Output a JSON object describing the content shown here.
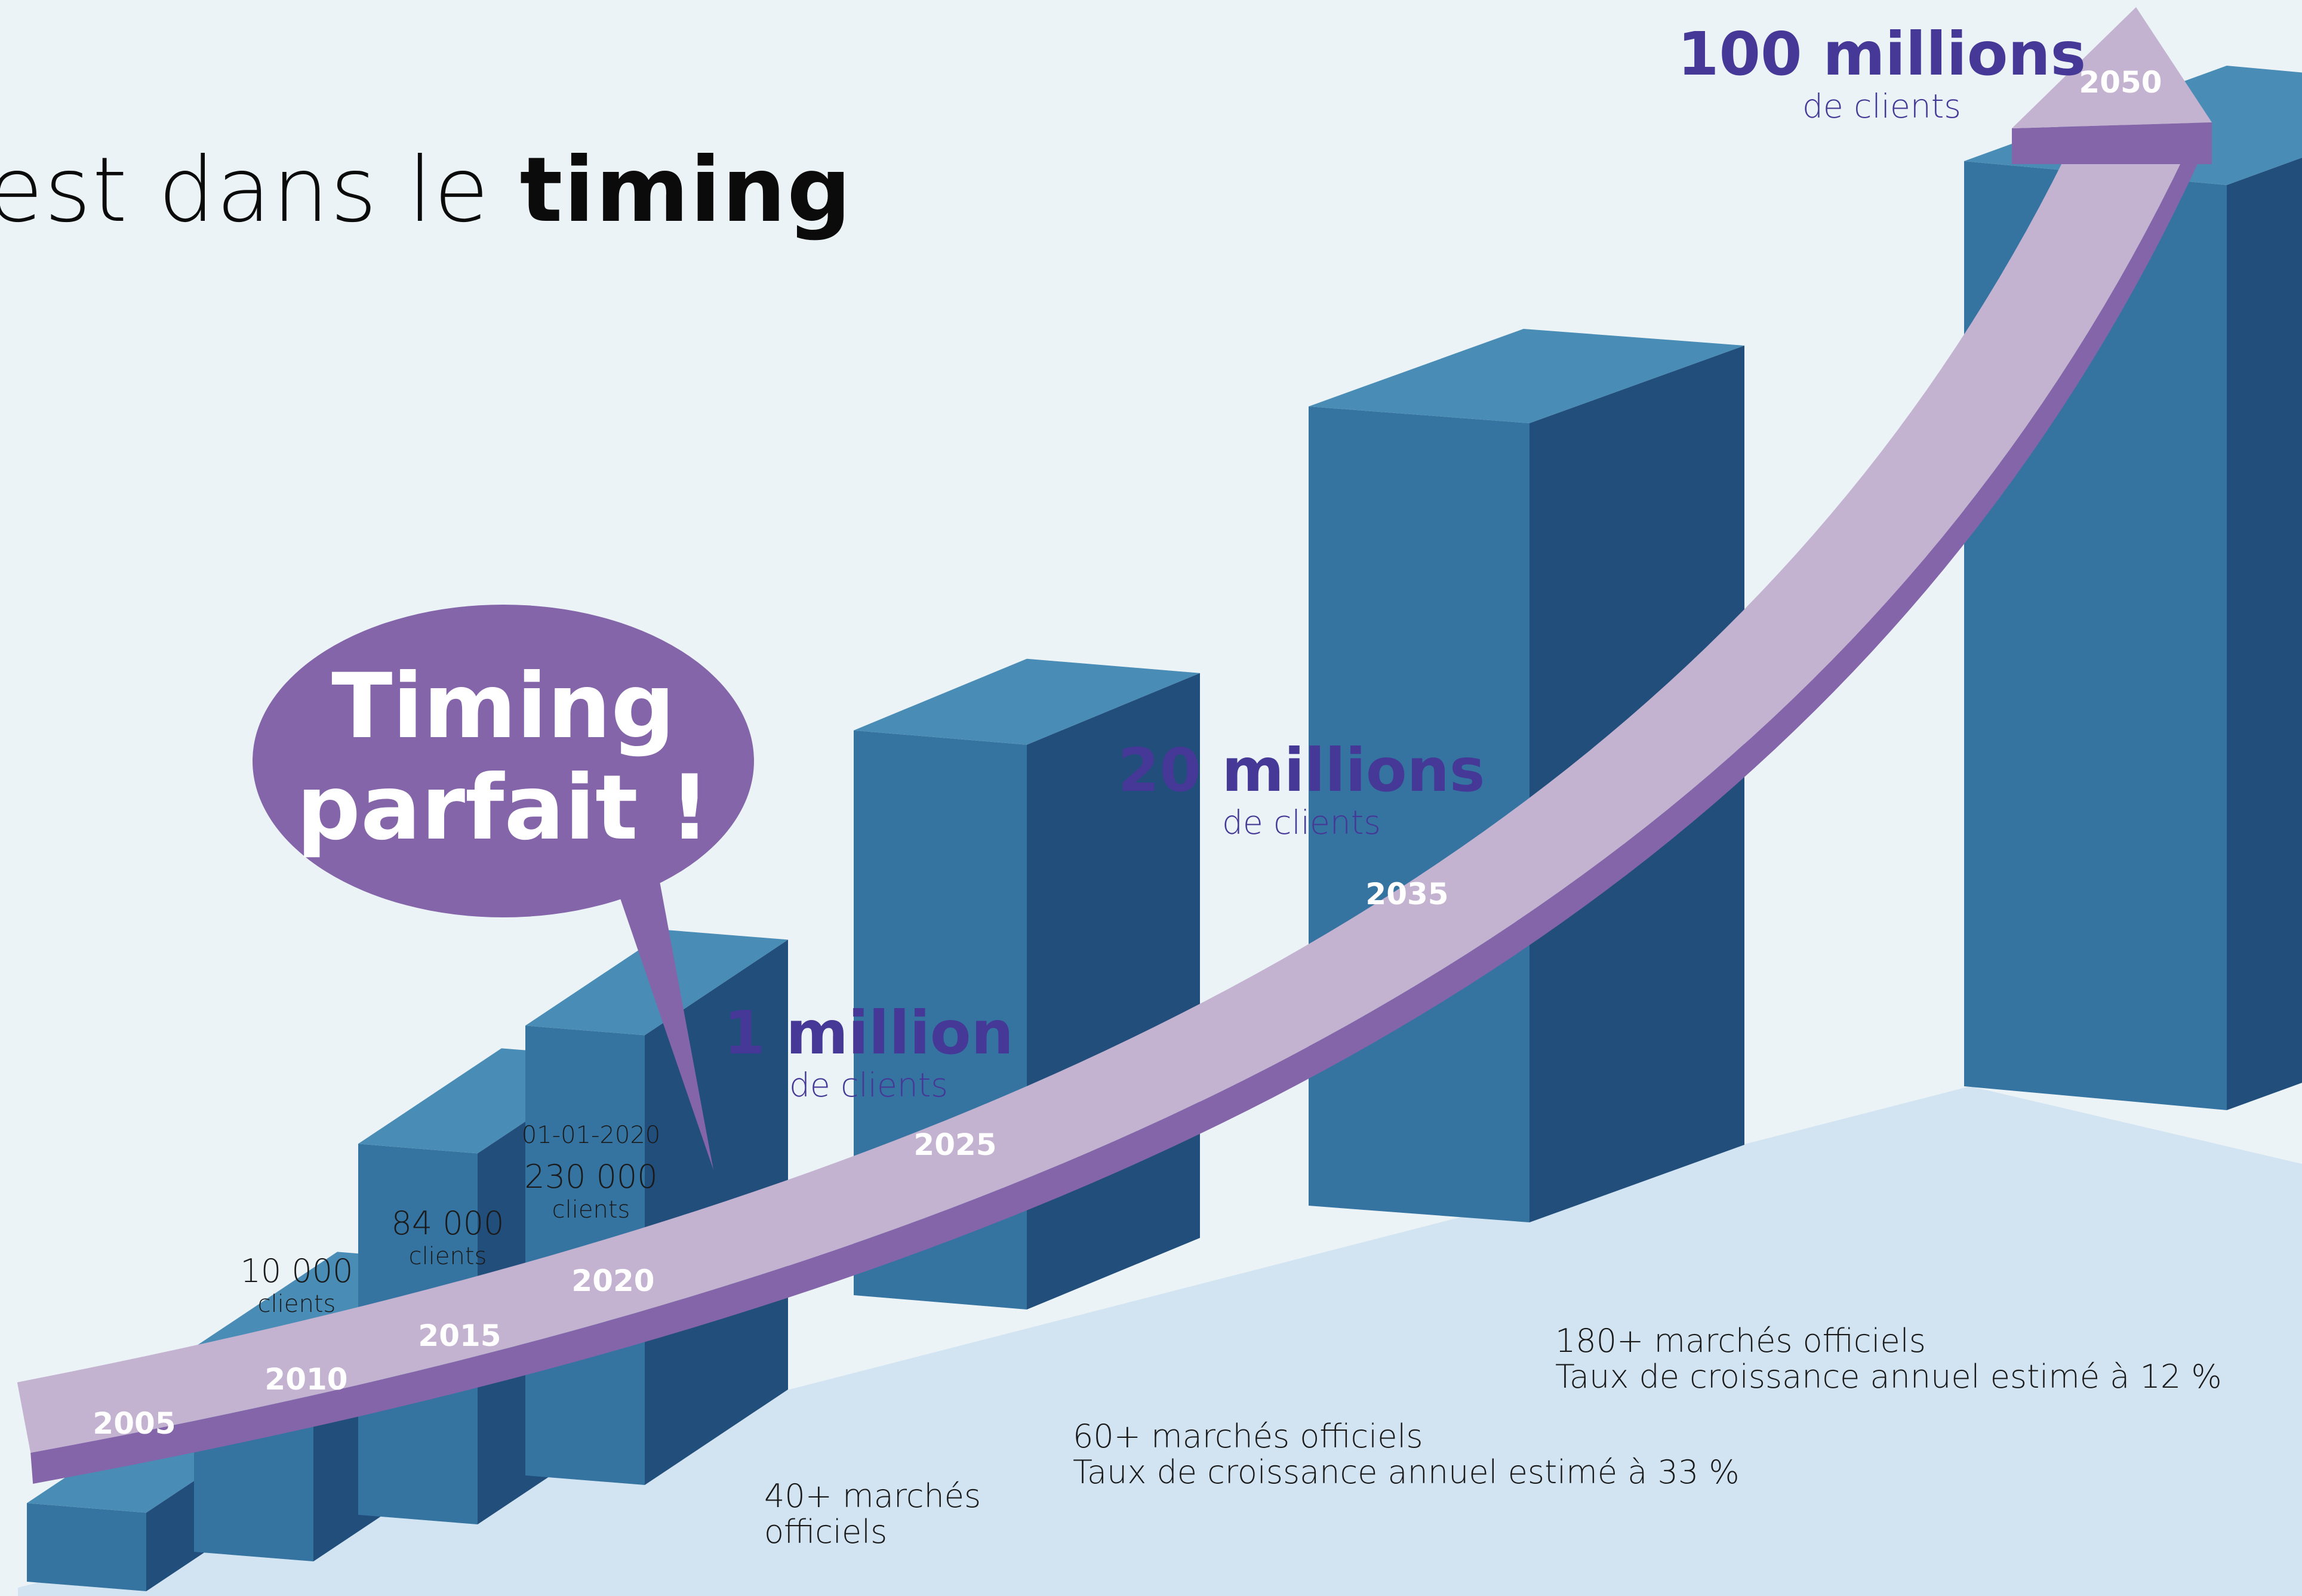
{
  "header": {
    "title_prefix": "est dans le",
    "title_emphasis": "timing"
  },
  "callout": {
    "line1": "Timing",
    "line2": "parfait !"
  },
  "chart_data": {
    "type": "bar",
    "categories": [
      "2005",
      "2010",
      "2015",
      "2020",
      "2025",
      "2035",
      "2050"
    ],
    "series": [
      {
        "values": [
          2,
          10,
          84,
          230,
          1000,
          20000,
          100000
        ]
      }
    ],
    "year_labels": [
      "2005",
      "2010",
      "2015",
      "2020",
      "2025",
      "2035",
      "2050"
    ],
    "value_annotations": [
      {
        "year": "2010",
        "value": "10 000",
        "unit": "clients"
      },
      {
        "year": "2015",
        "value": "84 000",
        "unit": "clients"
      },
      {
        "year": "2020",
        "date": "01-01-2020",
        "value": "230 000",
        "unit": "clients"
      }
    ],
    "milestones": [
      {
        "year": "2025",
        "value": "1 million",
        "unit": "de clients"
      },
      {
        "year": "2035",
        "value": "20 millions",
        "unit": "de clients"
      },
      {
        "year": "2050",
        "value": "100 millions",
        "unit": "de clients"
      }
    ],
    "market_notes": [
      {
        "line1": "40+ marchés",
        "line2": "officiels"
      },
      {
        "line1": "60+ marchés officiels",
        "line2": "Taux de croissance annuel estimé à 33 %"
      },
      {
        "line1": "180+ marchés officiels",
        "line2": "Taux de croissance annuel estimé à 12 %"
      }
    ],
    "grid": false,
    "legend": "none",
    "colors": {
      "bar_front": "#3574a1",
      "bar_top": "#498cb5",
      "bar_side": "#224e7c",
      "floor": "#d2e4f1",
      "arrow_face": "#c3b2d0",
      "arrow_edge": "#8465aa",
      "callout": "#8465aa",
      "milestone_text": "#453896"
    }
  }
}
